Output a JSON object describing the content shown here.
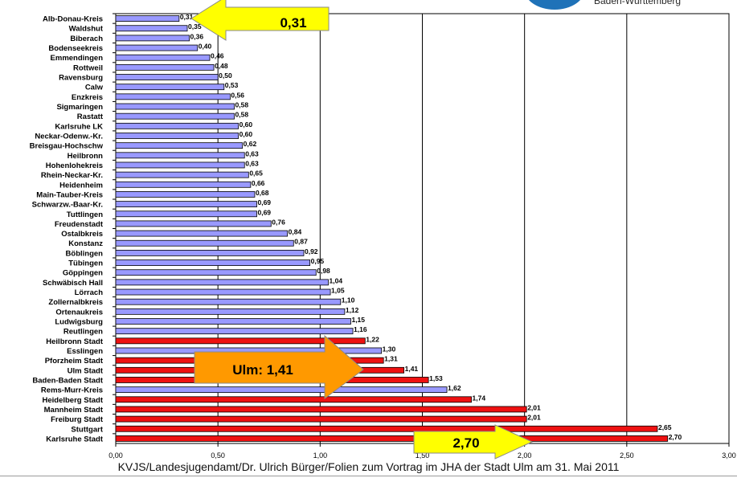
{
  "header": {
    "logo_text": "Baden-Württemberg"
  },
  "footer": {
    "text": "KVJS/Landesjugendamt/Dr. Ulrich Bürger/Folien zum Vortrag im JHA der Stadt Ulm am 31. Mai 2011"
  },
  "callouts": {
    "top_value": "0,31",
    "ulm_value": "Ulm: 1,41",
    "bottom_value": "2,70"
  },
  "colors": {
    "blue_bar": "#9999ff",
    "red_bar": "#ee1111",
    "callout_yellow": "#ffff00",
    "callout_orange": "#ff9900"
  },
  "chart_data": {
    "type": "bar",
    "orientation": "horizontal",
    "xlim": [
      0,
      3.0
    ],
    "xticks": [
      "0,00",
      "0,50",
      "1,00",
      "1,50",
      "2,00",
      "2,50",
      "3,00"
    ],
    "bars": [
      {
        "label": "Alb-Donau-Kreis",
        "value": 0.31,
        "value_label": "0,31",
        "group": "blue"
      },
      {
        "label": "Waldshut",
        "value": 0.35,
        "value_label": "0,35",
        "group": "blue"
      },
      {
        "label": "Biberach",
        "value": 0.36,
        "value_label": "0,36",
        "group": "blue"
      },
      {
        "label": "Bodenseekreis",
        "value": 0.4,
        "value_label": "0,40",
        "group": "blue"
      },
      {
        "label": "Emmendingen",
        "value": 0.46,
        "value_label": "0,46",
        "group": "blue"
      },
      {
        "label": "Rottweil",
        "value": 0.48,
        "value_label": "0,48",
        "group": "blue"
      },
      {
        "label": "Ravensburg",
        "value": 0.5,
        "value_label": "0,50",
        "group": "blue"
      },
      {
        "label": "Calw",
        "value": 0.53,
        "value_label": "0,53",
        "group": "blue"
      },
      {
        "label": "Enzkreis",
        "value": 0.56,
        "value_label": "0,56",
        "group": "blue"
      },
      {
        "label": "Sigmaringen",
        "value": 0.58,
        "value_label": "0,58",
        "group": "blue"
      },
      {
        "label": "Rastatt",
        "value": 0.58,
        "value_label": "0,58",
        "group": "blue"
      },
      {
        "label": "Karlsruhe LK",
        "value": 0.6,
        "value_label": "0,60",
        "group": "blue"
      },
      {
        "label": "Neckar-Odenw.-Kr.",
        "value": 0.6,
        "value_label": "0,60",
        "group": "blue"
      },
      {
        "label": "Breisgau-Hochschw",
        "value": 0.62,
        "value_label": "0,62",
        "group": "blue"
      },
      {
        "label": "Heilbronn",
        "value": 0.63,
        "value_label": "0,63",
        "group": "blue"
      },
      {
        "label": "Hohenlohekreis",
        "value": 0.63,
        "value_label": "0,63",
        "group": "blue"
      },
      {
        "label": "Rhein-Neckar-Kr.",
        "value": 0.65,
        "value_label": "0,65",
        "group": "blue"
      },
      {
        "label": "Heidenheim",
        "value": 0.66,
        "value_label": "0,66",
        "group": "blue"
      },
      {
        "label": "Main-Tauber-Kreis",
        "value": 0.68,
        "value_label": "0,68",
        "group": "blue"
      },
      {
        "label": "Schwarzw.-Baar-Kr.",
        "value": 0.69,
        "value_label": "0,69",
        "group": "blue"
      },
      {
        "label": "Tuttlingen",
        "value": 0.69,
        "value_label": "0,69",
        "group": "blue"
      },
      {
        "label": "Freudenstadt",
        "value": 0.76,
        "value_label": "0,76",
        "group": "blue"
      },
      {
        "label": "Ostalbkreis",
        "value": 0.84,
        "value_label": "0,84",
        "group": "blue"
      },
      {
        "label": "Konstanz",
        "value": 0.87,
        "value_label": "0,87",
        "group": "blue"
      },
      {
        "label": "Böblingen",
        "value": 0.92,
        "value_label": "0,92",
        "group": "blue"
      },
      {
        "label": "Tübingen",
        "value": 0.95,
        "value_label": "0,95",
        "group": "blue"
      },
      {
        "label": "Göppingen",
        "value": 0.98,
        "value_label": "0,98",
        "group": "blue"
      },
      {
        "label": "Schwäbisch Hall",
        "value": 1.04,
        "value_label": "1,04",
        "group": "blue"
      },
      {
        "label": "Lörrach",
        "value": 1.05,
        "value_label": "1,05",
        "group": "blue"
      },
      {
        "label": "Zollernalbkreis",
        "value": 1.1,
        "value_label": "1,10",
        "group": "blue"
      },
      {
        "label": "Ortenaukreis",
        "value": 1.12,
        "value_label": "1,12",
        "group": "blue"
      },
      {
        "label": "Ludwigsburg",
        "value": 1.15,
        "value_label": "1,15",
        "group": "blue"
      },
      {
        "label": "Reutlingen",
        "value": 1.16,
        "value_label": "1,16",
        "group": "blue"
      },
      {
        "label": "Heilbronn Stadt",
        "value": 1.22,
        "value_label": "1,22",
        "group": "red"
      },
      {
        "label": "Esslingen",
        "value": 1.3,
        "value_label": "1,30",
        "group": "blue"
      },
      {
        "label": "Pforzheim Stadt",
        "value": 1.31,
        "value_label": "1,31",
        "group": "red"
      },
      {
        "label": "Ulm Stadt",
        "value": 1.41,
        "value_label": "1,41",
        "group": "red"
      },
      {
        "label": "Baden-Baden Stadt",
        "value": 1.53,
        "value_label": "1,53",
        "group": "red"
      },
      {
        "label": "Rems-Murr-Kreis",
        "value": 1.62,
        "value_label": "1,62",
        "group": "blue"
      },
      {
        "label": "Heidelberg Stadt",
        "value": 1.74,
        "value_label": "1,74",
        "group": "red"
      },
      {
        "label": "Mannheim Stadt",
        "value": 2.01,
        "value_label": "2,01",
        "group": "red"
      },
      {
        "label": "Freiburg Stadt",
        "value": 2.01,
        "value_label": "2,01",
        "group": "red"
      },
      {
        "label": "Stuttgart",
        "value": 2.65,
        "value_label": "2,65",
        "group": "red"
      },
      {
        "label": "Karlsruhe Stadt",
        "value": 2.7,
        "value_label": "2,70",
        "group": "red"
      }
    ],
    "grid": true
  }
}
